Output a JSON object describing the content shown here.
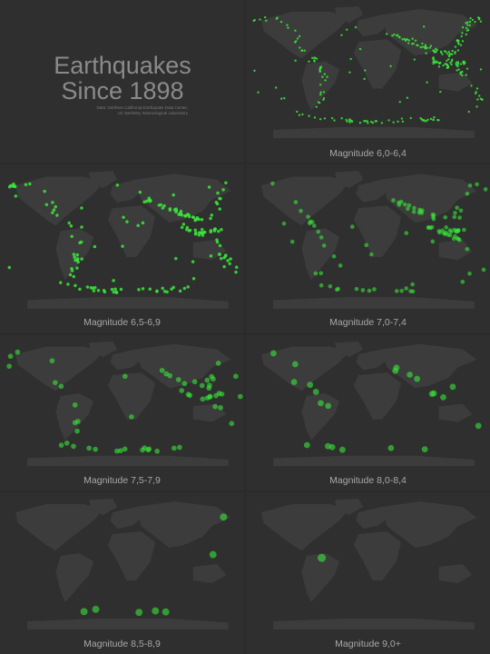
{
  "title": {
    "line1": "Earthquakes",
    "line2": "Since 1898",
    "source1": "Data: Northern California Earthquake Data Center,",
    "source2": "UC Berkeley Seismological Laboratory"
  },
  "colors": {
    "background": "#2b2b2b",
    "panel": "#2f2f2f",
    "land": "#3c3c3c",
    "quake": "#39e639",
    "text": "#a8a8a8"
  },
  "panels": [
    {
      "label": "Magnitude 6,0-6,4",
      "density": 260
    },
    {
      "label": "Magnitude 6,5-6,9",
      "density": 170
    },
    {
      "label": "Magnitude 7,0-7,4",
      "density": 95
    },
    {
      "label": "Magnitude 7,5-7,9",
      "density": 55
    },
    {
      "label": "Magnitude 8,0-8,4",
      "density": 22
    },
    {
      "label": "Magnitude 8,5-8,9",
      "density": 7
    },
    {
      "label": "Magnitude 9,0+",
      "density": 1
    }
  ]
}
